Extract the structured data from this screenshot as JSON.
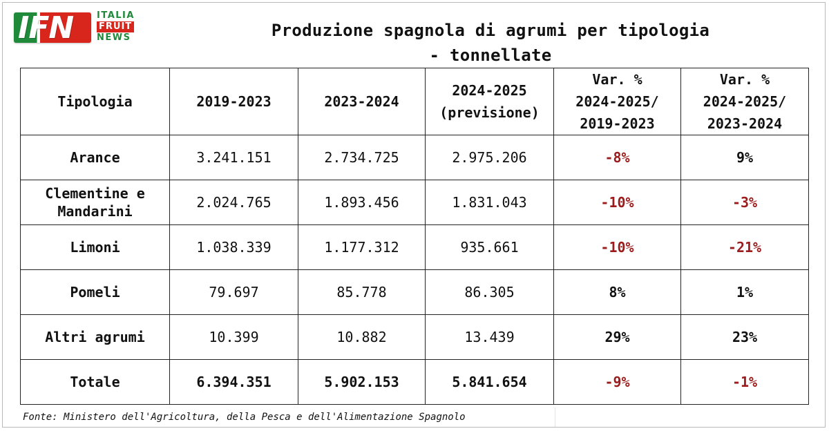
{
  "logo": {
    "mark": "IFN",
    "line1": "ITALIA",
    "line2": "FRUIT",
    "line3": "NEWS"
  },
  "title": {
    "line1": "Produzione spagnola di agrumi per tipologia",
    "line2": "- tonnellate"
  },
  "table": {
    "headers": [
      [
        "Tipologia"
      ],
      [
        "2019-2023"
      ],
      [
        "2023-2024"
      ],
      [
        "2024-2025",
        "(previsione)"
      ],
      [
        "Var. %",
        "2024-2025/",
        "2019-2023"
      ],
      [
        "Var. %",
        "2024-2025/",
        "2023-2024"
      ]
    ],
    "rows": [
      {
        "label": [
          "Arance"
        ],
        "v1": "3.241.151",
        "v2": "2.734.725",
        "v3": "2.975.206",
        "p1": "-8%",
        "p2": "9%"
      },
      {
        "label": [
          "Clementine e",
          "Mandarini"
        ],
        "v1": "2.024.765",
        "v2": "1.893.456",
        "v3": "1.831.043",
        "p1": "-10%",
        "p2": "-3%"
      },
      {
        "label": [
          "Limoni"
        ],
        "v1": "1.038.339",
        "v2": "1.177.312",
        "v3": "935.661",
        "p1": "-10%",
        "p2": "-21%"
      },
      {
        "label": [
          "Pomeli"
        ],
        "v1": "79.697",
        "v2": "85.778",
        "v3": "86.305",
        "p1": "8%",
        "p2": "1%"
      },
      {
        "label": [
          "Altri agrumi"
        ],
        "v1": "10.399",
        "v2": "10.882",
        "v3": "13.439",
        "p1": "29%",
        "p2": "23%"
      },
      {
        "label": [
          "Totale"
        ],
        "v1": "6.394.351",
        "v2": "5.902.153",
        "v3": "5.841.654",
        "p1": "-9%",
        "p2": "-1%",
        "total": true
      }
    ]
  },
  "source": "Fonte: Ministero dell'Agricoltura, della Pesca e dell'Alimentazione Spagnolo",
  "colors": {
    "negative": "#9b1c1c",
    "positive": "#111111",
    "logo_green": "#1f8a3a",
    "logo_red": "#d9261c"
  }
}
